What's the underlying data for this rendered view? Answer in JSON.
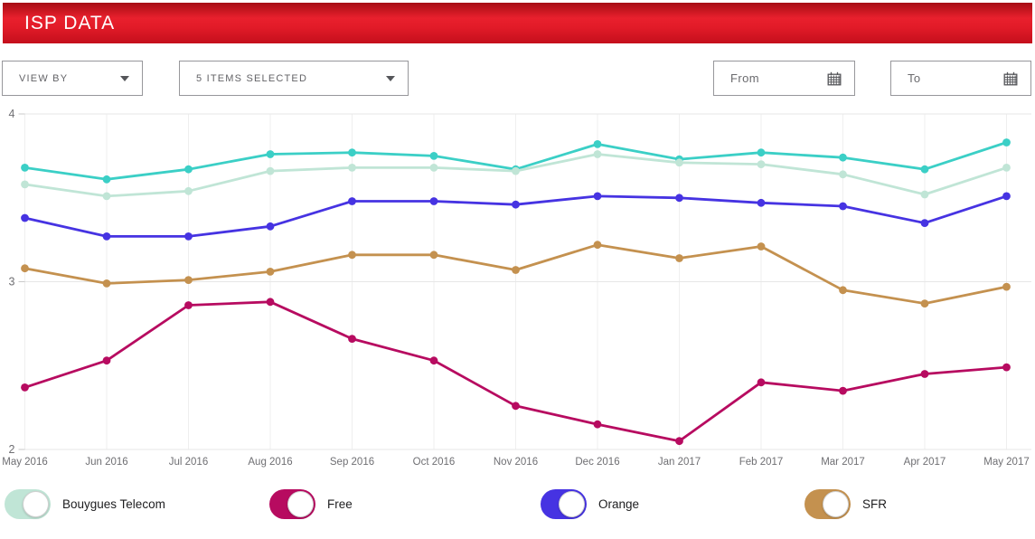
{
  "header": {
    "title": "ISP DATA"
  },
  "controls": {
    "view_by_label": "VIEW BY",
    "items_selected_label": "5 ITEMS SELECTED",
    "from_label": "From",
    "to_label": "To"
  },
  "legend": {
    "toggles": [
      {
        "label": "Bouygues Telecom",
        "color": "#c0e5d6",
        "state": "on"
      },
      {
        "label": "Free",
        "color": "#b70b60",
        "state": "on"
      },
      {
        "label": "Orange",
        "color": "#4633e2",
        "state": "on"
      },
      {
        "label": "SFR",
        "color": "#c4914f",
        "state": "on"
      }
    ]
  },
  "colors": {
    "header_red": "#d8141f",
    "axis_text": "#6f6f73",
    "grid_horizontal": "#e7e7e7",
    "grid_vertical": "#efefef"
  },
  "chart_data": {
    "type": "line",
    "x": [
      "May 2016",
      "Jun 2016",
      "Jul 2016",
      "Aug 2016",
      "Sep 2016",
      "Oct 2016",
      "Nov 2016",
      "Dec 2016",
      "Jan 2017",
      "Feb 2017",
      "Mar 2017",
      "Apr 2017",
      "May 2017"
    ],
    "ylim": [
      2,
      4
    ],
    "yticks": [
      2,
      3,
      4
    ],
    "grid": true,
    "legend_position": "bottom",
    "series": [
      {
        "name": "",
        "color": "#3bcfc6",
        "values": [
          3.68,
          3.61,
          3.67,
          3.76,
          3.77,
          3.75,
          3.67,
          3.82,
          3.73,
          3.77,
          3.74,
          3.67,
          3.83
        ]
      },
      {
        "name": "Bouygues Telecom",
        "color": "#c0e5d6",
        "values": [
          3.58,
          3.51,
          3.54,
          3.66,
          3.68,
          3.68,
          3.66,
          3.76,
          3.71,
          3.7,
          3.64,
          3.52,
          3.68
        ]
      },
      {
        "name": "Orange",
        "color": "#4633e2",
        "values": [
          3.38,
          3.27,
          3.27,
          3.33,
          3.48,
          3.48,
          3.46,
          3.51,
          3.5,
          3.47,
          3.45,
          3.35,
          3.51
        ]
      },
      {
        "name": "SFR",
        "color": "#c4914f",
        "values": [
          3.08,
          2.99,
          3.01,
          3.06,
          3.16,
          3.16,
          3.07,
          3.22,
          3.14,
          3.21,
          2.95,
          2.87,
          2.97
        ]
      },
      {
        "name": "Free",
        "color": "#b70b60",
        "values": [
          2.37,
          2.53,
          2.86,
          2.88,
          2.66,
          2.53,
          2.26,
          2.15,
          2.05,
          2.4,
          2.35,
          2.45,
          2.49
        ]
      }
    ]
  }
}
